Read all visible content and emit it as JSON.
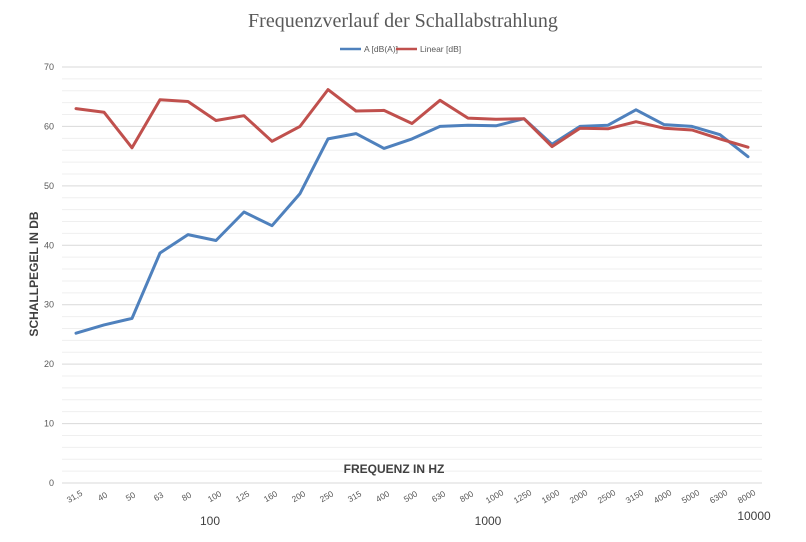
{
  "chart_data": {
    "type": "line",
    "title": "Frequenzverlauf der Schallabstrahlung",
    "xlabel": "FREQUENZ IN HZ",
    "ylabel": "SCHALLPEGEL IN DB",
    "ylim": [
      0,
      70
    ],
    "yticks": [
      0,
      10,
      20,
      30,
      40,
      50,
      60,
      70
    ],
    "grid": true,
    "legend_position": "top-center",
    "categories": [
      "31,5",
      "40",
      "50",
      "63",
      "80",
      "100",
      "125",
      "160",
      "200",
      "250",
      "315",
      "400",
      "500",
      "630",
      "800",
      "1000",
      "1250",
      "1600",
      "2000",
      "2500",
      "3150",
      "4000",
      "5000",
      "6300",
      "8000"
    ],
    "series": [
      {
        "name": "A [dB(A)]",
        "color": "#4f81bd",
        "values": [
          25.2,
          26.6,
          27.7,
          38.7,
          41.8,
          40.8,
          45.6,
          43.3,
          48.7,
          57.9,
          58.8,
          56.3,
          57.9,
          60.0,
          60.2,
          60.1,
          61.3,
          57.0,
          60.0,
          60.2,
          62.8,
          60.3,
          60.0,
          58.6,
          54.9
        ]
      },
      {
        "name": "Linear [dB]",
        "color": "#c0504d",
        "values": [
          63.0,
          62.4,
          56.4,
          64.5,
          64.2,
          61.0,
          61.8,
          57.5,
          60.0,
          66.2,
          62.6,
          62.7,
          60.5,
          64.4,
          61.4,
          61.2,
          61.3,
          56.6,
          59.7,
          59.6,
          60.8,
          59.7,
          59.4,
          57.9,
          56.5
        ]
      }
    ],
    "decade_labels": [
      "100",
      "1000",
      "10000"
    ]
  }
}
